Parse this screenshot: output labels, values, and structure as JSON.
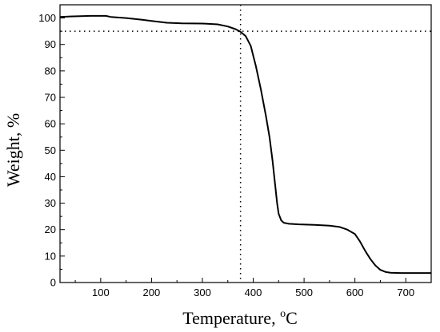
{
  "chart_data": {
    "type": "line",
    "title": "",
    "xlabel_main": "Temperature, ",
    "xlabel_sup": "o",
    "xlabel_unit": "C",
    "ylabel": "Weight, %",
    "xlim": [
      20,
      750
    ],
    "ylim": [
      0,
      105
    ],
    "x_ticks": [
      100,
      200,
      300,
      400,
      500,
      600,
      700
    ],
    "y_ticks": [
      0,
      10,
      20,
      30,
      40,
      50,
      60,
      70,
      80,
      90,
      100
    ],
    "x_tick_labels": [
      "100",
      "200",
      "300",
      "400",
      "500",
      "600",
      "700"
    ],
    "y_tick_labels": [
      "0",
      "10",
      "20",
      "30",
      "40",
      "50",
      "60",
      "70",
      "80",
      "90",
      "100"
    ],
    "grid": false,
    "reference_lines": {
      "horizontal_y": 95,
      "vertical_x": 375
    },
    "series": [
      {
        "color": "#000000",
        "points": [
          [
            20,
            100.4
          ],
          [
            40,
            100.6
          ],
          [
            60,
            100.7
          ],
          [
            80,
            100.8
          ],
          [
            100,
            100.8
          ],
          [
            110,
            100.8
          ],
          [
            120,
            100.4
          ],
          [
            150,
            100.0
          ],
          [
            180,
            99.4
          ],
          [
            200,
            98.9
          ],
          [
            230,
            98.2
          ],
          [
            260,
            98.0
          ],
          [
            300,
            97.9
          ],
          [
            330,
            97.6
          ],
          [
            350,
            96.8
          ],
          [
            365,
            95.8
          ],
          [
            375,
            94.8
          ],
          [
            385,
            93.2
          ],
          [
            395,
            89.5
          ],
          [
            405,
            82.0
          ],
          [
            415,
            73.0
          ],
          [
            425,
            63.0
          ],
          [
            432,
            55.0
          ],
          [
            438,
            46.0
          ],
          [
            443,
            37.0
          ],
          [
            447,
            30.0
          ],
          [
            450,
            26.0
          ],
          [
            455,
            23.5
          ],
          [
            460,
            22.6
          ],
          [
            470,
            22.2
          ],
          [
            490,
            22.0
          ],
          [
            520,
            21.8
          ],
          [
            550,
            21.5
          ],
          [
            570,
            21.0
          ],
          [
            585,
            20.0
          ],
          [
            600,
            18.3
          ],
          [
            610,
            15.5
          ],
          [
            620,
            12.0
          ],
          [
            630,
            9.0
          ],
          [
            640,
            6.5
          ],
          [
            650,
            4.8
          ],
          [
            660,
            4.0
          ],
          [
            670,
            3.7
          ],
          [
            690,
            3.6
          ],
          [
            710,
            3.6
          ],
          [
            730,
            3.6
          ],
          [
            750,
            3.6
          ]
        ]
      }
    ]
  }
}
